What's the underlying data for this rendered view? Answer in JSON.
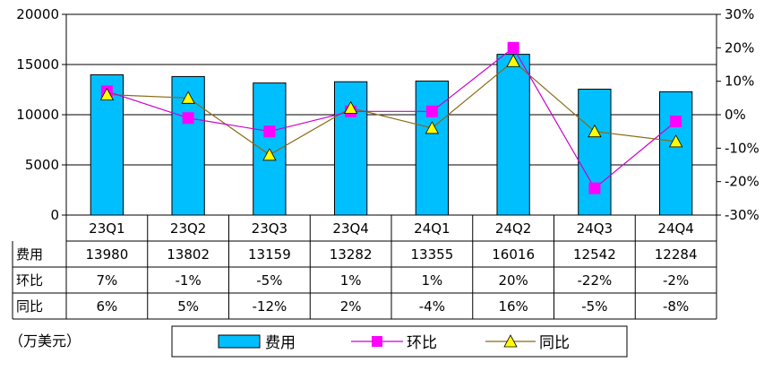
{
  "chart_data": {
    "type": "bar",
    "categories": [
      "23Q1",
      "23Q2",
      "23Q3",
      "23Q4",
      "24Q1",
      "24Q2",
      "24Q3",
      "24Q4"
    ],
    "series": [
      {
        "name": "费用",
        "kind": "bar",
        "axis": "left",
        "values": [
          13980,
          13802,
          13159,
          13282,
          13355,
          16016,
          12542,
          12284
        ]
      },
      {
        "name": "环比",
        "kind": "line",
        "axis": "right",
        "values": [
          7,
          -1,
          -5,
          1,
          1,
          20,
          -22,
          -2
        ]
      },
      {
        "name": "同比",
        "kind": "line",
        "axis": "right",
        "values": [
          6,
          5,
          -12,
          2,
          -4,
          16,
          -5,
          -8
        ]
      }
    ],
    "y_left": {
      "ylim": [
        0,
        20000
      ],
      "ticks": [
        "0",
        "5000",
        "10000",
        "15000",
        "20000"
      ]
    },
    "y_right": {
      "ylim": [
        -30,
        30
      ],
      "ticks": [
        "-30%",
        "-20%",
        "-10%",
        "0%",
        "10%",
        "20%",
        "30%"
      ]
    },
    "table": {
      "row_labels": [
        "费用",
        "环比",
        "同比"
      ],
      "rows": [
        [
          "13980",
          "13802",
          "13159",
          "13282",
          "13355",
          "16016",
          "12542",
          "12284"
        ],
        [
          "7%",
          "-1%",
          "-5%",
          "1%",
          "1%",
          "20%",
          "-22%",
          "-2%"
        ],
        [
          "6%",
          "5%",
          "-12%",
          "2%",
          "-4%",
          "16%",
          "-5%",
          "-8%"
        ]
      ]
    },
    "unit_label": "（万美元）",
    "legend": [
      "费用",
      "环比",
      "同比"
    ],
    "colors": {
      "bar": "#00BFFF",
      "mom": "#FF00FF",
      "yoy": "#FFFF00",
      "yoy_line": "#8B6914",
      "mom_line": "#CC00CC"
    }
  }
}
